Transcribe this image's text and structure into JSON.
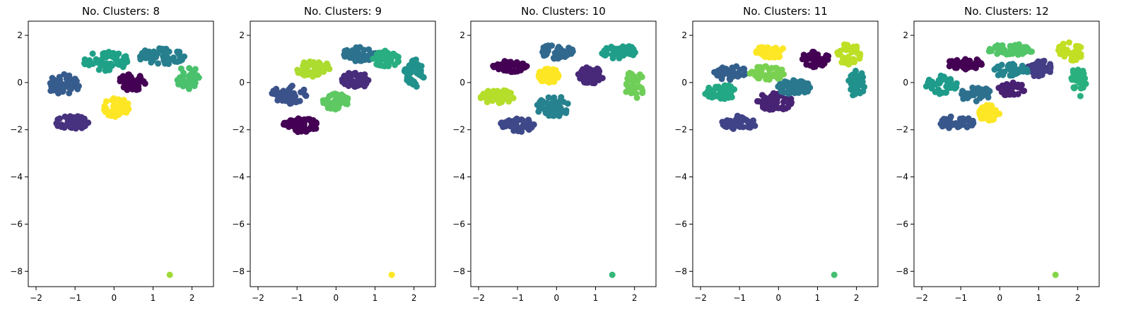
{
  "chart_data": [
    {
      "type": "scatter",
      "title": "No. Clusters: 8",
      "xlabel": "",
      "ylabel": "",
      "xlim": [
        -2.2,
        2.55
      ],
      "ylim": [
        -8.65,
        2.6
      ],
      "xticks": [
        -2,
        -1,
        0,
        1,
        2
      ],
      "yticks": [
        2,
        0,
        -2,
        -4,
        -6,
        -8
      ],
      "grid": false,
      "clusters": [
        {
          "color": "#440154",
          "center": [
            0.45,
            0.0
          ],
          "spread": [
            0.35,
            0.35
          ],
          "n": 60
        },
        {
          "color": "#46327e",
          "center": [
            -1.1,
            -1.7
          ],
          "spread": [
            0.45,
            0.3
          ],
          "n": 50
        },
        {
          "color": "#365c8d",
          "center": [
            -1.3,
            -0.1
          ],
          "spread": [
            0.4,
            0.45
          ],
          "n": 55
        },
        {
          "color": "#277f8e",
          "center": [
            1.2,
            1.1
          ],
          "spread": [
            0.6,
            0.35
          ],
          "n": 55
        },
        {
          "color": "#1fa187",
          "center": [
            -0.2,
            0.9
          ],
          "spread": [
            0.6,
            0.4
          ],
          "n": 55
        },
        {
          "color": "#4ac16d",
          "center": [
            1.9,
            0.2
          ],
          "spread": [
            0.3,
            0.5
          ],
          "n": 35
        },
        {
          "color": "#a0da39",
          "center": [
            1.43,
            -8.15
          ],
          "spread": [
            0,
            0
          ],
          "n": 1
        },
        {
          "color": "#fde725",
          "center": [
            0.05,
            -1.05
          ],
          "spread": [
            0.35,
            0.4
          ],
          "n": 55
        }
      ]
    },
    {
      "type": "scatter",
      "title": "No. Clusters: 9",
      "xlabel": "",
      "ylabel": "",
      "xlim": [
        -2.2,
        2.55
      ],
      "ylim": [
        -8.65,
        2.6
      ],
      "xticks": [
        -2,
        -1,
        0,
        1,
        2
      ],
      "yticks": [
        2,
        0,
        -2,
        -4,
        -6,
        -8
      ],
      "grid": false,
      "clusters": [
        {
          "color": "#440154",
          "center": [
            -0.9,
            -1.8
          ],
          "spread": [
            0.45,
            0.3
          ],
          "n": 55
        },
        {
          "color": "#472d7b",
          "center": [
            0.5,
            0.1
          ],
          "spread": [
            0.35,
            0.35
          ],
          "n": 55
        },
        {
          "color": "#3b528b",
          "center": [
            -1.2,
            -0.5
          ],
          "spread": [
            0.45,
            0.4
          ],
          "n": 55
        },
        {
          "color": "#2c728e",
          "center": [
            0.6,
            1.2
          ],
          "spread": [
            0.45,
            0.3
          ],
          "n": 45
        },
        {
          "color": "#21918c",
          "center": [
            2.0,
            0.3
          ],
          "spread": [
            0.25,
            0.7
          ],
          "n": 40
        },
        {
          "color": "#28ae80",
          "center": [
            1.3,
            1.0
          ],
          "spread": [
            0.35,
            0.35
          ],
          "n": 45
        },
        {
          "color": "#5ec962",
          "center": [
            0.0,
            -0.8
          ],
          "spread": [
            0.35,
            0.35
          ],
          "n": 50
        },
        {
          "color": "#addc30",
          "center": [
            -0.6,
            0.6
          ],
          "spread": [
            0.45,
            0.35
          ],
          "n": 50
        },
        {
          "color": "#fde725",
          "center": [
            1.43,
            -8.15
          ],
          "spread": [
            0,
            0
          ],
          "n": 1
        }
      ]
    },
    {
      "type": "scatter",
      "title": "No. Clusters: 10",
      "xlabel": "",
      "ylabel": "",
      "xlim": [
        -2.2,
        2.55
      ],
      "ylim": [
        -8.65,
        2.6
      ],
      "xticks": [
        -2,
        -1,
        0,
        1,
        2
      ],
      "yticks": [
        2,
        0,
        -2,
        -4,
        -6,
        -8
      ],
      "grid": false,
      "clusters": [
        {
          "color": "#440154",
          "center": [
            -1.2,
            0.7
          ],
          "spread": [
            0.45,
            0.25
          ],
          "n": 45
        },
        {
          "color": "#482878",
          "center": [
            0.85,
            0.3
          ],
          "spread": [
            0.35,
            0.35
          ],
          "n": 50
        },
        {
          "color": "#3e4989",
          "center": [
            -1.0,
            -1.8
          ],
          "spread": [
            0.45,
            0.3
          ],
          "n": 50
        },
        {
          "color": "#31688e",
          "center": [
            0.0,
            1.3
          ],
          "spread": [
            0.45,
            0.3
          ],
          "n": 45
        },
        {
          "color": "#26828e",
          "center": [
            -0.1,
            -1.0
          ],
          "spread": [
            0.45,
            0.45
          ],
          "n": 50
        },
        {
          "color": "#1f9e89",
          "center": [
            1.6,
            1.3
          ],
          "spread": [
            0.45,
            0.3
          ],
          "n": 40
        },
        {
          "color": "#35b779",
          "center": [
            1.43,
            -8.15
          ],
          "spread": [
            0,
            0
          ],
          "n": 1
        },
        {
          "color": "#6ece58",
          "center": [
            2.0,
            -0.1
          ],
          "spread": [
            0.25,
            0.6
          ],
          "n": 35
        },
        {
          "color": "#b5de2b",
          "center": [
            -1.5,
            -0.6
          ],
          "spread": [
            0.45,
            0.3
          ],
          "n": 50
        },
        {
          "color": "#fde725",
          "center": [
            -0.2,
            0.3
          ],
          "spread": [
            0.3,
            0.3
          ],
          "n": 45
        }
      ]
    },
    {
      "type": "scatter",
      "title": "No. Clusters: 11",
      "xlabel": "",
      "ylabel": "",
      "xlim": [
        -2.2,
        2.55
      ],
      "ylim": [
        -8.65,
        2.6
      ],
      "xticks": [
        -2,
        -1,
        0,
        1,
        2
      ],
      "yticks": [
        2,
        0,
        -2,
        -4,
        -6,
        -8
      ],
      "grid": false,
      "clusters": [
        {
          "color": "#440154",
          "center": [
            0.95,
            1.0
          ],
          "spread": [
            0.35,
            0.35
          ],
          "n": 50
        },
        {
          "color": "#482374",
          "center": [
            -0.1,
            -0.8
          ],
          "spread": [
            0.45,
            0.4
          ],
          "n": 50
        },
        {
          "color": "#404387",
          "center": [
            -1.0,
            -1.7
          ],
          "spread": [
            0.45,
            0.3
          ],
          "n": 50
        },
        {
          "color": "#345f8d",
          "center": [
            -1.2,
            0.4
          ],
          "spread": [
            0.45,
            0.3
          ],
          "n": 40
        },
        {
          "color": "#2a788e",
          "center": [
            0.4,
            -0.2
          ],
          "spread": [
            0.45,
            0.3
          ],
          "n": 45
        },
        {
          "color": "#21918c",
          "center": [
            2.0,
            0.0
          ],
          "spread": [
            0.25,
            0.6
          ],
          "n": 35
        },
        {
          "color": "#22a884",
          "center": [
            -1.5,
            -0.4
          ],
          "spread": [
            0.4,
            0.35
          ],
          "n": 45
        },
        {
          "color": "#44bf70",
          "center": [
            1.43,
            -8.15
          ],
          "spread": [
            0,
            0
          ],
          "n": 1
        },
        {
          "color": "#7ad151",
          "center": [
            -0.3,
            0.4
          ],
          "spread": [
            0.45,
            0.3
          ],
          "n": 45
        },
        {
          "color": "#bddf26",
          "center": [
            1.8,
            1.2
          ],
          "spread": [
            0.35,
            0.45
          ],
          "n": 35
        },
        {
          "color": "#fde725",
          "center": [
            -0.2,
            1.3
          ],
          "spread": [
            0.45,
            0.25
          ],
          "n": 40
        }
      ]
    },
    {
      "type": "scatter",
      "title": "No. Clusters: 12",
      "xlabel": "",
      "ylabel": "",
      "xlim": [
        -2.2,
        2.55
      ],
      "ylim": [
        -8.65,
        2.6
      ],
      "xticks": [
        -2,
        -1,
        0,
        1,
        2
      ],
      "yticks": [
        2,
        0,
        -2,
        -4,
        -6,
        -8
      ],
      "grid": false,
      "clusters": [
        {
          "color": "#440154",
          "center": [
            -0.9,
            0.8
          ],
          "spread": [
            0.45,
            0.25
          ],
          "n": 40
        },
        {
          "color": "#482173",
          "center": [
            0.3,
            -0.3
          ],
          "spread": [
            0.35,
            0.3
          ],
          "n": 40
        },
        {
          "color": "#433e85",
          "center": [
            1.0,
            0.6
          ],
          "spread": [
            0.35,
            0.35
          ],
          "n": 45
        },
        {
          "color": "#38588c",
          "center": [
            -1.1,
            -1.7
          ],
          "spread": [
            0.45,
            0.3
          ],
          "n": 45
        },
        {
          "color": "#2d708e",
          "center": [
            -0.6,
            -0.5
          ],
          "spread": [
            0.45,
            0.3
          ],
          "n": 40
        },
        {
          "color": "#25858e",
          "center": [
            0.3,
            0.5
          ],
          "spread": [
            0.45,
            0.3
          ],
          "n": 45
        },
        {
          "color": "#1e9b8a",
          "center": [
            -1.5,
            -0.1
          ],
          "spread": [
            0.4,
            0.4
          ],
          "n": 40
        },
        {
          "color": "#2ab07f",
          "center": [
            2.0,
            0.0
          ],
          "spread": [
            0.25,
            0.6
          ],
          "n": 35
        },
        {
          "color": "#52c569",
          "center": [
            0.3,
            1.4
          ],
          "spread": [
            0.6,
            0.25
          ],
          "n": 45
        },
        {
          "color": "#86d549",
          "center": [
            1.43,
            -8.15
          ],
          "spread": [
            0,
            0
          ],
          "n": 1
        },
        {
          "color": "#c2df23",
          "center": [
            1.8,
            1.3
          ],
          "spread": [
            0.35,
            0.4
          ],
          "n": 35
        },
        {
          "color": "#fde725",
          "center": [
            -0.3,
            -1.3
          ],
          "spread": [
            0.3,
            0.35
          ],
          "n": 35
        }
      ]
    }
  ]
}
